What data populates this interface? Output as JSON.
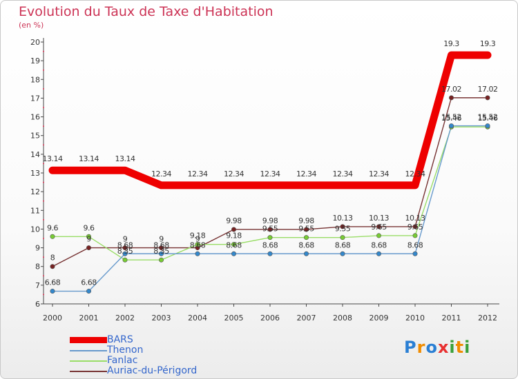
{
  "title": "Evolution du Taux de Taxe d'Habitation",
  "subtitle": "(en %)",
  "brand": {
    "text": "Proxiti",
    "letters": [
      "P",
      "r",
      "o",
      "x",
      "i",
      "t",
      "i"
    ],
    "colors": [
      "#2a7fd4",
      "#f08c00",
      "#2a7fd4",
      "#e83030",
      "#3aa03a",
      "#f08c00",
      "#3aa03a"
    ]
  },
  "chart_data": {
    "type": "line",
    "x": [
      "2000",
      "2001",
      "2002",
      "2003",
      "2004",
      "2005",
      "2006",
      "2007",
      "2008",
      "2009",
      "2010",
      "2011",
      "2012"
    ],
    "ylim": [
      6,
      20
    ],
    "yticks": [
      "6",
      "7",
      "8",
      "9",
      "10",
      "11",
      "12",
      "13",
      "14",
      "15",
      "16",
      "17",
      "18",
      "19",
      "20"
    ],
    "grid": false,
    "legend_position": "bottom-left",
    "series": [
      {
        "name": "BARS",
        "color": "#ee0000",
        "values": [
          13.14,
          13.14,
          13.14,
          12.34,
          12.34,
          12.34,
          12.34,
          12.34,
          12.34,
          12.34,
          12.34,
          19.3,
          19.3
        ],
        "labels": [
          "13.14",
          "13.14",
          "13.14",
          "12.34",
          "12.34",
          "12.34",
          "12.34",
          "12.34",
          "12.34",
          "12.34",
          "12.34",
          "19.3",
          "19.3"
        ]
      },
      {
        "name": "Thenon",
        "color": "#6699cc",
        "values": [
          6.68,
          6.68,
          8.68,
          8.68,
          8.68,
          8.68,
          8.68,
          8.68,
          8.68,
          8.68,
          8.68,
          15.52,
          15.52
        ],
        "labels": [
          "6.68",
          "6.68",
          "8.68",
          "8.68",
          "8.68",
          "8.68",
          "8.68",
          "8.68",
          "8.68",
          "8.68",
          "8.68",
          "15.52",
          "15.52"
        ]
      },
      {
        "name": "Fanlac",
        "color": "#99dd66",
        "values": [
          9.6,
          9.6,
          8.35,
          8.35,
          9.18,
          9.18,
          9.55,
          9.55,
          9.55,
          9.65,
          9.65,
          15.46,
          15.46
        ],
        "labels": [
          "9.6",
          "9.6",
          "8.35",
          "8.35",
          "9.18",
          "9.18",
          "9.55",
          "9.55",
          "9.55",
          "9.65",
          "9.65",
          "15.46",
          "15.46"
        ]
      },
      {
        "name": "Auriac-du-Périgord",
        "color": "#773333",
        "values": [
          8,
          9,
          9,
          9,
          9,
          9.98,
          9.98,
          9.98,
          10.13,
          10.13,
          10.13,
          17.02,
          17.02
        ],
        "labels": [
          "8",
          "9",
          "9",
          "9",
          "9",
          "9.98",
          "9.98",
          "9.98",
          "10.13",
          "10.13",
          "10.13",
          "17.02",
          "17.02"
        ]
      }
    ]
  }
}
